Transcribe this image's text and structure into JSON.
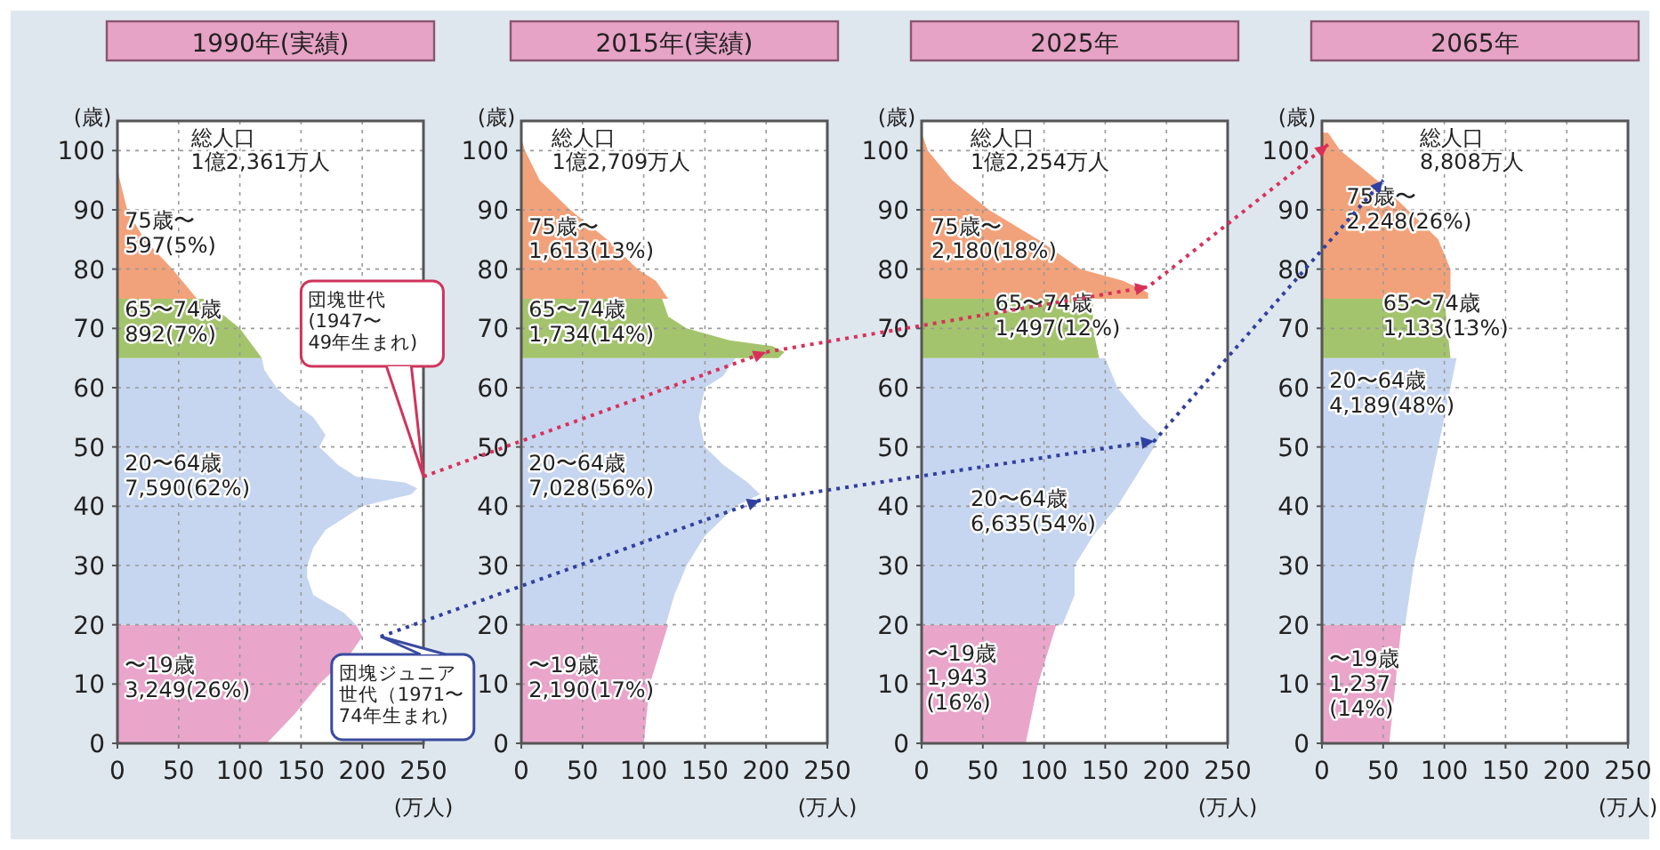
{
  "chart_data": [
    {
      "type": "area",
      "orientation": "horizontal",
      "title": "1990年(実績)",
      "xlabel": "(万人)",
      "ylabel": "(歳)",
      "xlim": [
        0,
        250
      ],
      "xticks": [
        0,
        50,
        100,
        150,
        200,
        250
      ],
      "ylim": [
        0,
        105
      ],
      "yticks": [
        0,
        10,
        20,
        30,
        40,
        50,
        60,
        70,
        80,
        90,
        100
      ],
      "grid": true,
      "series": [
        {
          "color": "#eaa5ca",
          "x": [
            0,
            5,
            10,
            15,
            18,
            20
          ],
          "values": [
            122,
            145,
            165,
            190,
            200,
            195
          ]
        },
        {
          "color": "#c6d6f0",
          "x": [
            20,
            22,
            25,
            28,
            30,
            33,
            36,
            38,
            40,
            42,
            43,
            44,
            45,
            47,
            50,
            52,
            55,
            58,
            60,
            63,
            65
          ],
          "values": [
            195,
            185,
            160,
            155,
            155,
            160,
            170,
            185,
            200,
            240,
            245,
            235,
            195,
            180,
            165,
            170,
            160,
            140,
            130,
            120,
            118
          ]
        },
        {
          "color": "#a3c46c",
          "x": [
            65,
            70,
            75
          ],
          "values": [
            118,
            100,
            70
          ]
        },
        {
          "color": "#f2a27a",
          "x": [
            75,
            80,
            85,
            90,
            95,
            97
          ],
          "values": [
            65,
            45,
            22,
            8,
            2,
            0
          ]
        }
      ],
      "annotations": [
        "総人口\n1億2,361万人",
        "〜19歳\n3,249(26%)",
        "20〜64歳\n7,590(62%)",
        "65〜74歳\n892(7%)",
        "75歳〜\n597(5%)",
        "団塊世代(1947〜49年生まれ)",
        "団塊ジュニア世代（1971〜74年生まれ)"
      ]
    },
    {
      "type": "area",
      "orientation": "horizontal",
      "title": "2015年(実績)",
      "xlabel": "(万人)",
      "ylabel": "(歳)",
      "xlim": [
        0,
        250
      ],
      "xticks": [
        0,
        50,
        100,
        150,
        200,
        250
      ],
      "ylim": [
        0,
        105
      ],
      "yticks": [
        0,
        10,
        20,
        30,
        40,
        50,
        60,
        70,
        80,
        90,
        100
      ],
      "grid": true,
      "series": [
        {
          "color": "#eaa5ca",
          "x": [
            0,
            10,
            20
          ],
          "values": [
            100,
            105,
            120
          ]
        },
        {
          "color": "#c6d6f0",
          "x": [
            20,
            25,
            30,
            35,
            40,
            42,
            44,
            47,
            50,
            55,
            60,
            62,
            65
          ],
          "values": [
            118,
            125,
            135,
            150,
            175,
            195,
            185,
            165,
            150,
            145,
            150,
            165,
            175
          ]
        },
        {
          "color": "#a3c46c",
          "x": [
            65,
            66,
            67,
            68,
            70,
            72,
            75
          ],
          "values": [
            210,
            215,
            205,
            170,
            135,
            120,
            115
          ]
        },
        {
          "color": "#f2a27a",
          "x": [
            75,
            78,
            80,
            85,
            90,
            95,
            100,
            102
          ],
          "values": [
            120,
            110,
            95,
            70,
            40,
            15,
            3,
            0
          ]
        }
      ],
      "annotations": [
        "総人口\n1億2,709万人",
        "〜19歳\n2,190(17%)",
        "20〜64歳\n7,028(56%)",
        "65〜74歳\n1,734(14%)",
        "75歳〜\n1,613(13%)"
      ]
    },
    {
      "type": "area",
      "orientation": "horizontal",
      "title": "2025年",
      "xlabel": "(万人)",
      "ylabel": "(歳)",
      "xlim": [
        0,
        250
      ],
      "xticks": [
        0,
        50,
        100,
        150,
        200,
        250
      ],
      "ylim": [
        0,
        105
      ],
      "yticks": [
        0,
        10,
        20,
        30,
        40,
        50,
        60,
        70,
        80,
        90,
        100
      ],
      "grid": true,
      "series": [
        {
          "color": "#eaa5ca",
          "x": [
            0,
            10,
            20
          ],
          "values": [
            85,
            95,
            110
          ]
        },
        {
          "color": "#c6d6f0",
          "x": [
            20,
            25,
            30,
            35,
            40,
            45,
            50,
            52,
            55,
            60,
            65
          ],
          "values": [
            115,
            125,
            125,
            140,
            160,
            175,
            190,
            195,
            180,
            160,
            150
          ]
        },
        {
          "color": "#a3c46c",
          "x": [
            65,
            70,
            75
          ],
          "values": [
            145,
            140,
            140
          ]
        },
        {
          "color": "#f2a27a",
          "x": [
            75,
            76,
            78,
            80,
            85,
            90,
            95,
            100,
            103
          ],
          "values": [
            185,
            185,
            165,
            130,
            95,
            55,
            25,
            5,
            0
          ]
        }
      ],
      "annotations": [
        "総人口\n1億2,254万人",
        "〜19歳\n1,943\n(16%)",
        "20〜64歳\n6,635(54%)",
        "65〜74歳\n1,497(12%)",
        "75歳〜\n2,180(18%)"
      ]
    },
    {
      "type": "area",
      "orientation": "horizontal",
      "title": "2065年",
      "xlabel": "(万人)",
      "ylabel": "(歳)",
      "xlim": [
        0,
        250
      ],
      "xticks": [
        0,
        50,
        100,
        150,
        200,
        250
      ],
      "ylim": [
        0,
        105
      ],
      "yticks": [
        0,
        10,
        20,
        30,
        40,
        50,
        60,
        70,
        80,
        90,
        100
      ],
      "grid": true,
      "series": [
        {
          "color": "#eaa5ca",
          "x": [
            0,
            10,
            20
          ],
          "values": [
            55,
            60,
            65
          ]
        },
        {
          "color": "#c6d6f0",
          "x": [
            20,
            30,
            40,
            50,
            60,
            65
          ],
          "values": [
            68,
            75,
            85,
            95,
            105,
            110
          ]
        },
        {
          "color": "#a3c46c",
          "x": [
            65,
            75
          ],
          "values": [
            105,
            100
          ]
        },
        {
          "color": "#f2a27a",
          "x": [
            75,
            80,
            85,
            90,
            95,
            100,
            103
          ],
          "values": [
            105,
            105,
            95,
            70,
            45,
            15,
            5
          ]
        }
      ],
      "annotations": [
        "総人口\n8,808万人",
        "〜19歳\n1,237\n(14%)",
        "20〜64歳\n4,189(48%)",
        "65〜74歳\n1,133(13%)",
        "75歳〜\n2,248(26%)"
      ]
    }
  ]
}
